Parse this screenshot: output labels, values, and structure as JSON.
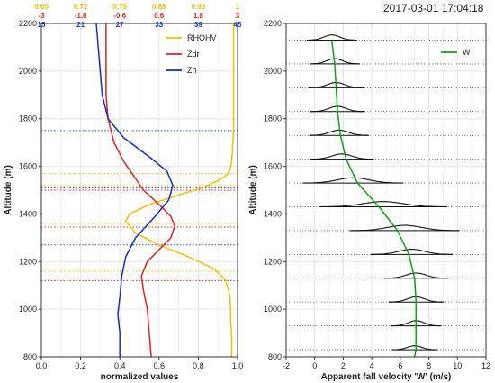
{
  "title": "2017-03-01 17:04:18",
  "chart_data": [
    {
      "type": "line",
      "xlabel": "normalized values",
      "ylabel": "Altitude (m)",
      "xlim": [
        0.0,
        1.0
      ],
      "ylim": [
        800,
        2200
      ],
      "x_ticks": [
        "0.0",
        "0.2",
        "0.4",
        "0.6",
        "0.8",
        "1.0"
      ],
      "y_ticks": [
        "800",
        "1000",
        "1200",
        "1400",
        "1600",
        "1800",
        "2000",
        "2200"
      ],
      "grid": true,
      "legend_position": "top-right",
      "top_scales": [
        {
          "color": "#e8c000",
          "labels": [
            "0.65",
            "0.72",
            "0.79",
            "0.86",
            "0.93",
            "1"
          ]
        },
        {
          "color": "#e02020",
          "labels": [
            "-3",
            "-1.8",
            "-0.6",
            "0.6",
            "1.8",
            "3"
          ]
        },
        {
          "color": "#2040c0",
          "labels": [
            "15",
            "21",
            "27",
            "33",
            "39",
            "45"
          ]
        }
      ],
      "series": [
        {
          "name": "RHOHV",
          "color": "#f2c000",
          "x": [
            0.98,
            0.98,
            0.98,
            0.98,
            0.975,
            0.97,
            0.96,
            0.94,
            0.9,
            0.82,
            0.7,
            0.55,
            0.45,
            0.43,
            0.48,
            0.6,
            0.75,
            0.88,
            0.94,
            0.96,
            0.965,
            0.965,
            0.97,
            0.97
          ],
          "y": [
            2200,
            2100,
            1900,
            1750,
            1680,
            1620,
            1580,
            1560,
            1540,
            1510,
            1480,
            1440,
            1400,
            1370,
            1320,
            1270,
            1220,
            1170,
            1120,
            1060,
            1000,
            950,
            880,
            800
          ]
        },
        {
          "name": "Zdr",
          "color": "#e02020",
          "x": [
            0.33,
            0.33,
            0.33,
            0.34,
            0.37,
            0.42,
            0.47,
            0.52,
            0.6,
            0.66,
            0.68,
            0.66,
            0.6,
            0.54,
            0.51,
            0.52,
            0.54,
            0.55,
            0.56
          ],
          "y": [
            2200,
            2100,
            1900,
            1800,
            1700,
            1620,
            1560,
            1500,
            1440,
            1390,
            1350,
            1300,
            1250,
            1200,
            1140,
            1080,
            1000,
            900,
            800
          ]
        },
        {
          "name": "Zh",
          "color": "#1030c0",
          "x": [
            0.28,
            0.29,
            0.31,
            0.34,
            0.42,
            0.55,
            0.64,
            0.67,
            0.65,
            0.58,
            0.48,
            0.43,
            0.41,
            0.4,
            0.39,
            0.4,
            0.4
          ],
          "y": [
            2200,
            2100,
            1900,
            1800,
            1720,
            1640,
            1580,
            1520,
            1460,
            1390,
            1300,
            1220,
            1140,
            1050,
            980,
            900,
            800
          ]
        }
      ],
      "hlines": [
        {
          "color": "#2040c0",
          "y": [
            1750,
            1510,
            1270
          ]
        },
        {
          "color": "#e8c000",
          "y": [
            1570,
            1520,
            1360,
            1160
          ]
        },
        {
          "color": "#e02020",
          "y": [
            1500,
            1345,
            1120
          ]
        }
      ]
    },
    {
      "type": "line",
      "xlabel": "Apparent fall velocity 'W' (m/s)",
      "ylabel": "Altitude (m)",
      "xlim": [
        -2,
        12
      ],
      "ylim": [
        800,
        2200
      ],
      "x_ticks": [
        "-2",
        "0",
        "2",
        "4",
        "6",
        "8",
        "10",
        "12"
      ],
      "y_ticks": [
        "800",
        "1000",
        "1200",
        "1400",
        "1600",
        "1800",
        "2000",
        "2200"
      ],
      "grid": true,
      "legend_position": "top-right",
      "series": [
        {
          "name": "W",
          "color": "#10a010",
          "x": [
            1.2,
            1.4,
            1.5,
            1.6,
            1.8,
            2.2,
            3.0,
            4.5,
            5.8,
            6.6,
            7.0,
            7.1,
            7.1,
            7.1,
            7.0
          ],
          "y": [
            2130,
            2030,
            1930,
            1830,
            1730,
            1630,
            1530,
            1430,
            1330,
            1230,
            1130,
            1030,
            930,
            830,
            800
          ]
        }
      ],
      "spectra": [
        {
          "altitude": 2130,
          "center": 1.2,
          "width": 0.55,
          "amplitude": 40
        },
        {
          "altitude": 2030,
          "center": 1.4,
          "width": 0.55,
          "amplitude": 40
        },
        {
          "altitude": 1930,
          "center": 1.5,
          "width": 0.6,
          "amplitude": 40
        },
        {
          "altitude": 1830,
          "center": 1.6,
          "width": 0.6,
          "amplitude": 40
        },
        {
          "altitude": 1730,
          "center": 1.7,
          "width": 0.65,
          "amplitude": 40
        },
        {
          "altitude": 1630,
          "center": 1.9,
          "width": 0.7,
          "amplitude": 40
        },
        {
          "altitude": 1530,
          "center": 2.7,
          "width": 1.1,
          "amplitude": 40
        },
        {
          "altitude": 1430,
          "center": 4.8,
          "width": 1.4,
          "amplitude": 40
        },
        {
          "altitude": 1330,
          "center": 6.3,
          "width": 1.2,
          "amplitude": 40
        },
        {
          "altitude": 1230,
          "center": 6.8,
          "width": 0.9,
          "amplitude": 40
        },
        {
          "altitude": 1130,
          "center": 7.1,
          "width": 0.7,
          "amplitude": 40
        },
        {
          "altitude": 1030,
          "center": 7.1,
          "width": 0.6,
          "amplitude": 40
        },
        {
          "altitude": 930,
          "center": 7.1,
          "width": 0.55,
          "amplitude": 40
        },
        {
          "altitude": 830,
          "center": 7.0,
          "width": 0.5,
          "amplitude": 30
        }
      ]
    }
  ]
}
